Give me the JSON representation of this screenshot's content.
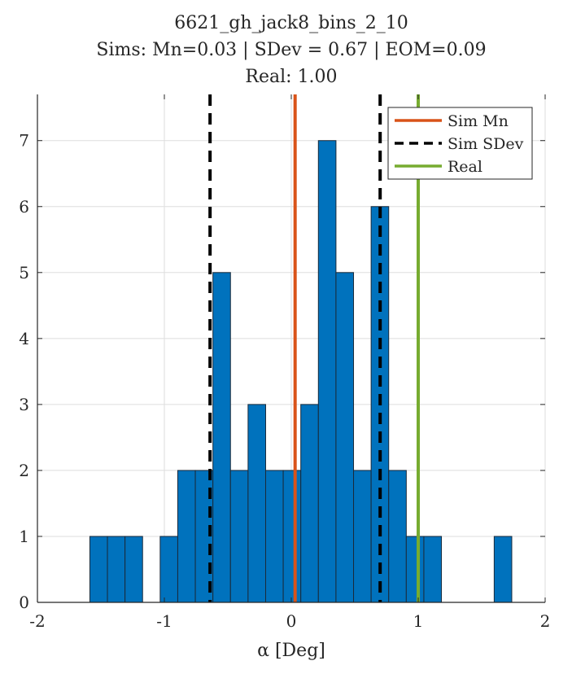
{
  "chart_data": {
    "type": "bar",
    "title_lines": [
      "6621_gh_jack8_bins_2_10",
      "Sims: Mn=0.03 | SDev = 0.67 | EOM=0.09",
      "Real: 1.00"
    ],
    "xlabel": "α [Deg]",
    "ylabel": "",
    "xlim": [
      -2,
      2
    ],
    "ylim": [
      0,
      7.7
    ],
    "xticks": [
      -2,
      -1,
      0,
      1,
      2
    ],
    "xtick_labels": [
      "-2",
      "-1",
      "0",
      "1",
      "2"
    ],
    "yticks": [
      0,
      1,
      2,
      3,
      4,
      5,
      6,
      7
    ],
    "ytick_labels": [
      "0",
      "1",
      "2",
      "3",
      "4",
      "5",
      "6",
      "7"
    ],
    "grid": true,
    "bin_width": 0.1385,
    "bins": [
      {
        "x0": -1.587,
        "count": 1
      },
      {
        "x0": -1.4485,
        "count": 1
      },
      {
        "x0": -1.31,
        "count": 1
      },
      {
        "x0": -1.1715,
        "count": 0
      },
      {
        "x0": -1.033,
        "count": 1
      },
      {
        "x0": -0.8945,
        "count": 2
      },
      {
        "x0": -0.756,
        "count": 2
      },
      {
        "x0": -0.6175,
        "count": 5
      },
      {
        "x0": -0.479,
        "count": 2
      },
      {
        "x0": -0.3405,
        "count": 3
      },
      {
        "x0": -0.202,
        "count": 2
      },
      {
        "x0": -0.0635,
        "count": 2
      },
      {
        "x0": 0.075,
        "count": 3
      },
      {
        "x0": 0.2135,
        "count": 7
      },
      {
        "x0": 0.352,
        "count": 5
      },
      {
        "x0": 0.4905,
        "count": 2
      },
      {
        "x0": 0.629,
        "count": 6
      },
      {
        "x0": 0.7675,
        "count": 2
      },
      {
        "x0": 0.906,
        "count": 1
      },
      {
        "x0": 1.0445,
        "count": 1
      },
      {
        "x0": 1.183,
        "count": 0
      },
      {
        "x0": 1.3215,
        "count": 0
      },
      {
        "x0": 1.46,
        "count": 0
      },
      {
        "x0": 1.5985,
        "count": 1
      }
    ],
    "lines": [
      {
        "name": "Sim Mn",
        "x": 0.03,
        "style": "solid",
        "color": "#D95319"
      },
      {
        "name": "Sim SDev",
        "x": -0.64,
        "style": "dashed",
        "color": "#000000"
      },
      {
        "name": "Sim SDev",
        "x": 0.7,
        "style": "dashed",
        "color": "#000000"
      },
      {
        "name": "Real",
        "x": 1.0,
        "style": "solid",
        "color": "#77AC30"
      }
    ],
    "legend": {
      "position": "top-right",
      "entries": [
        {
          "label": "Sim Mn",
          "style": "solid",
          "color": "#D95319"
        },
        {
          "label": "Sim SDev",
          "style": "dashed",
          "color": "#000000"
        },
        {
          "label": "Real",
          "style": "solid",
          "color": "#77AC30"
        }
      ]
    },
    "colors": {
      "bar_fill": "#0072BD",
      "bar_edge": "#1a2a3a",
      "grid": "#dedede",
      "axis": "#262626"
    }
  }
}
